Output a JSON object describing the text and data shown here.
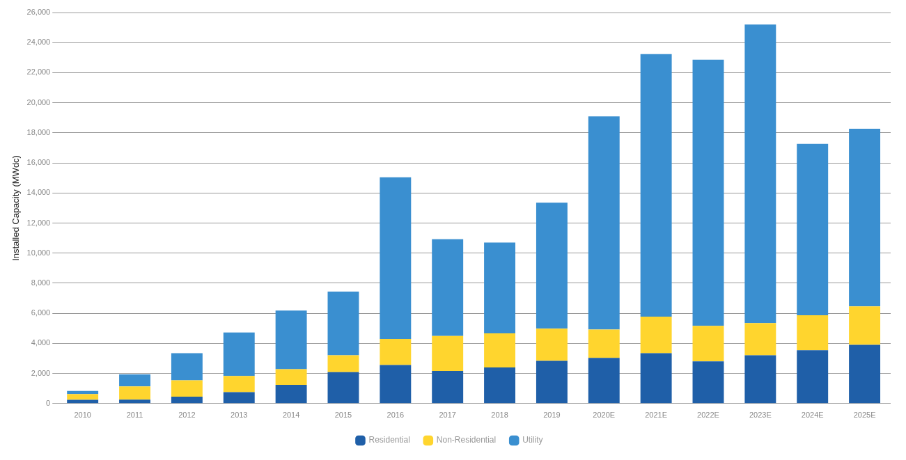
{
  "chart_data": {
    "type": "bar",
    "stacked": true,
    "ylabel": "Installed Capacity (MWdc)",
    "categories": [
      "2010",
      "2011",
      "2012",
      "2013",
      "2014",
      "2015",
      "2016",
      "2017",
      "2018",
      "2019",
      "2020E",
      "2021E",
      "2022E",
      "2023E",
      "2024E",
      "2025E"
    ],
    "series": [
      {
        "name": "Residential",
        "color": "#1f5fa8",
        "values": [
          240,
          260,
          450,
          750,
          1240,
          2090,
          2560,
          2170,
          2400,
          2840,
          3030,
          3350,
          2800,
          3210,
          3540,
          3900
        ]
      },
      {
        "name": "Non-Residential",
        "color": "#ffd52e",
        "values": [
          390,
          880,
          1090,
          1080,
          1040,
          1120,
          1730,
          2320,
          2260,
          2140,
          1890,
          2420,
          2360,
          2140,
          2330,
          2560
        ]
      },
      {
        "name": "Utility",
        "color": "#3a8fd0",
        "values": [
          200,
          790,
          1810,
          2890,
          3900,
          4230,
          10750,
          6440,
          6040,
          8370,
          14170,
          17460,
          17710,
          19850,
          11400,
          11810
        ]
      }
    ],
    "ylim": [
      0,
      26000
    ],
    "yticks": [
      {
        "value": 0,
        "label": "0"
      },
      {
        "value": 2000,
        "label": "2,000"
      },
      {
        "value": 4000,
        "label": "4,000"
      },
      {
        "value": 6000,
        "label": "6,000"
      },
      {
        "value": 8000,
        "label": "8,000"
      },
      {
        "value": 10000,
        "label": "10,000"
      },
      {
        "value": 12000,
        "label": "12,000"
      },
      {
        "value": 14000,
        "label": "14,000"
      },
      {
        "value": 16000,
        "label": "16,000"
      },
      {
        "value": 18000,
        "label": "18,000"
      },
      {
        "value": 20000,
        "label": "20,000"
      },
      {
        "value": 22000,
        "label": "22,000"
      },
      {
        "value": 24000,
        "label": "24,000"
      },
      {
        "value": 26000,
        "label": "26,000"
      }
    ],
    "grid": "y",
    "legend": "bottom"
  }
}
